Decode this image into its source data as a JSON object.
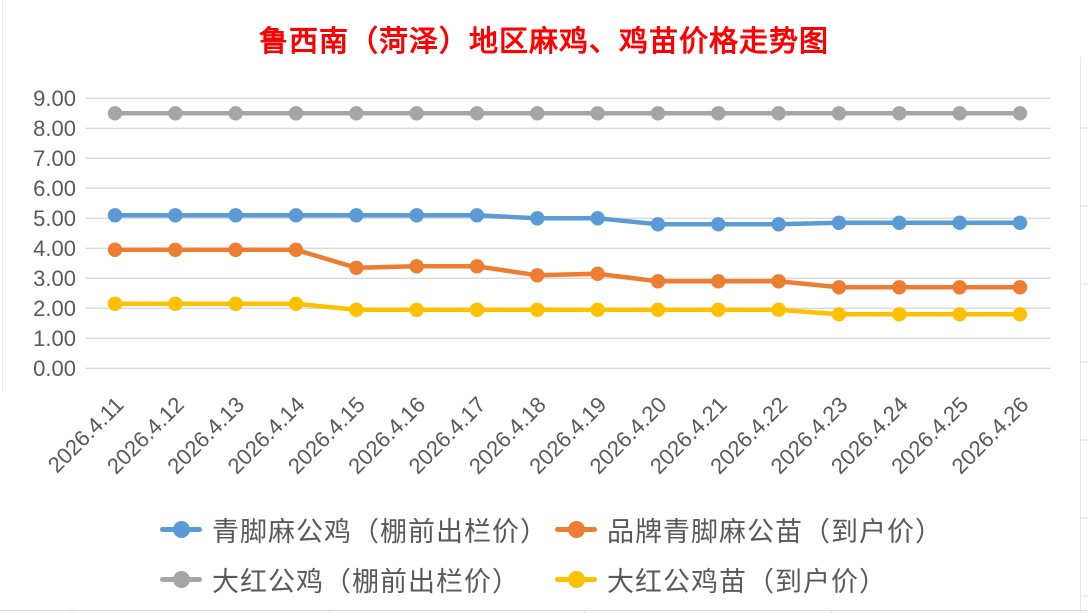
{
  "title": {
    "text": "鲁西南（菏泽）地区麻鸡、鸡苗价格走势图",
    "color": "#FF0000"
  },
  "axis": {
    "text_color": "#595959",
    "gridline_color": "#D9D9D9"
  },
  "chart_data": {
    "type": "line",
    "title": "鲁西南（菏泽）地区麻鸡、鸡苗价格走势图",
    "categories": [
      "2026.4.11",
      "2026.4.12",
      "2026.4.13",
      "2026.4.14",
      "2026.4.15",
      "2026.4.16",
      "2026.4.17",
      "2026.4.18",
      "2026.4.19",
      "2026.4.20",
      "2026.4.21",
      "2026.4.22",
      "2026.4.23",
      "2026.4.24",
      "2026.4.25",
      "2026.4.26"
    ],
    "series": [
      {
        "name": "青脚麻公鸡（棚前出栏价）",
        "color": "#5B9BD5",
        "values": [
          5.1,
          5.1,
          5.1,
          5.1,
          5.1,
          5.1,
          5.1,
          5.0,
          5.0,
          4.8,
          4.8,
          4.8,
          4.85,
          4.85,
          4.85,
          4.85
        ]
      },
      {
        "name": "品牌青脚麻公苗（到户价）",
        "color": "#ED7D31",
        "values": [
          3.95,
          3.95,
          3.95,
          3.95,
          3.35,
          3.4,
          3.4,
          3.1,
          3.15,
          2.9,
          2.9,
          2.9,
          2.7,
          2.7,
          2.7,
          2.7
        ]
      },
      {
        "name": "大红公鸡（棚前出栏价）",
        "color": "#A5A5A5",
        "values": [
          8.5,
          8.5,
          8.5,
          8.5,
          8.5,
          8.5,
          8.5,
          8.5,
          8.5,
          8.5,
          8.5,
          8.5,
          8.5,
          8.5,
          8.5,
          8.5
        ]
      },
      {
        "name": "大红公鸡苗（到户价）",
        "color": "#FFC000",
        "values": [
          2.15,
          2.15,
          2.15,
          2.15,
          1.95,
          1.95,
          1.95,
          1.95,
          1.95,
          1.95,
          1.95,
          1.95,
          1.8,
          1.8,
          1.8,
          1.8
        ]
      }
    ],
    "ylim": [
      0,
      9
    ],
    "y_ticks": [
      "0.00",
      "1.00",
      "2.00",
      "3.00",
      "4.00",
      "5.00",
      "6.00",
      "7.00",
      "8.00",
      "9.00"
    ],
    "grid": true,
    "legend_position": "bottom",
    "legend_rows": [
      [
        0,
        1
      ],
      [
        2,
        3
      ]
    ],
    "xlabel": "",
    "ylabel": ""
  }
}
